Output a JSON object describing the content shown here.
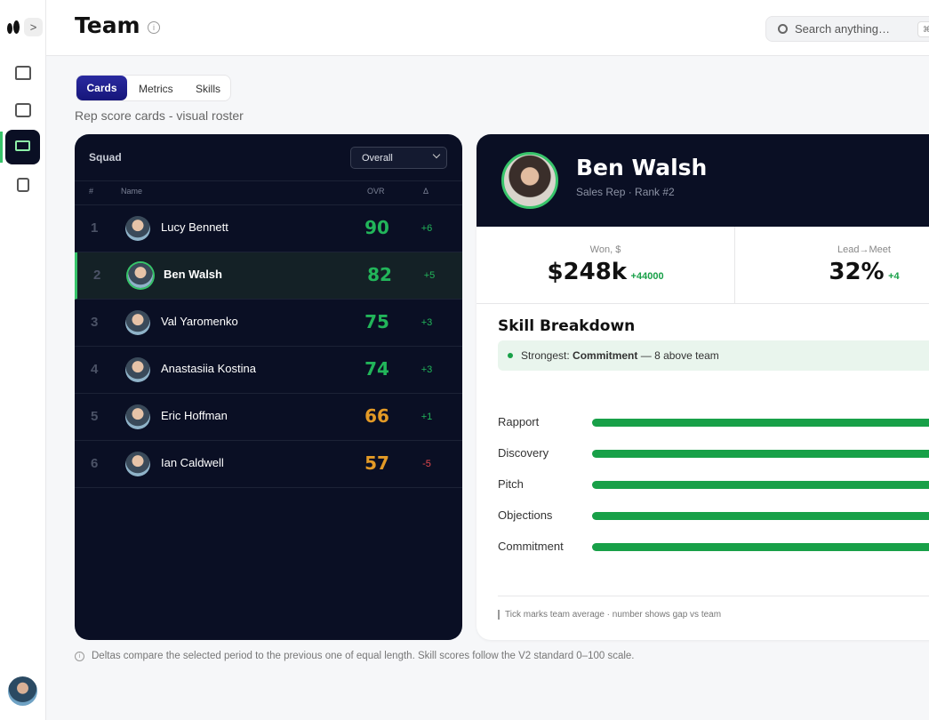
{
  "header": {
    "title": "Team",
    "search_placeholder": "Search anything…",
    "shortcut": "⌘"
  },
  "tabs": [
    "Cards",
    "Metrics",
    "Skills"
  ],
  "subtitle": "Rep score cards - visual roster",
  "squad": {
    "title": "Squad",
    "filter": "Overall",
    "columns": [
      "#",
      "Name",
      "OVR",
      "Δ"
    ],
    "rows": [
      [
        1,
        "Lucy Bennett",
        90,
        "+6"
      ],
      [
        2,
        "Ben Walsh",
        82,
        "+5"
      ],
      [
        3,
        "Val Yaromenko",
        75,
        "+3"
      ],
      [
        4,
        "Anastasiia Kostina",
        74,
        "+3"
      ],
      [
        5,
        "Eric Hoffman",
        66,
        "+1"
      ],
      [
        6,
        "Ian Caldwell",
        57,
        "-5"
      ]
    ]
  },
  "detail": {
    "name": "Ben Walsh",
    "role": "Sales Rep · Rank #2",
    "stats": [
      {
        "label": "Won, $",
        "value": "$248k",
        "delta": "+44000"
      },
      {
        "label": "Lead→Meet",
        "value": "32%",
        "delta": "+4"
      }
    ],
    "skill_title": "Skill Breakdown",
    "strongest": {
      "prefix": "Strongest:",
      "skill": "Commitment",
      "suffix": "— 8 above team"
    },
    "skills": [
      "Rapport",
      "Discovery",
      "Pitch",
      "Objections",
      "Commitment"
    ],
    "footnote": "Tick marks team average · number shows gap vs team"
  },
  "note": "Deltas compare the selected period to the previous one of equal length. Skill scores follow the V2 standard 0–100 scale."
}
